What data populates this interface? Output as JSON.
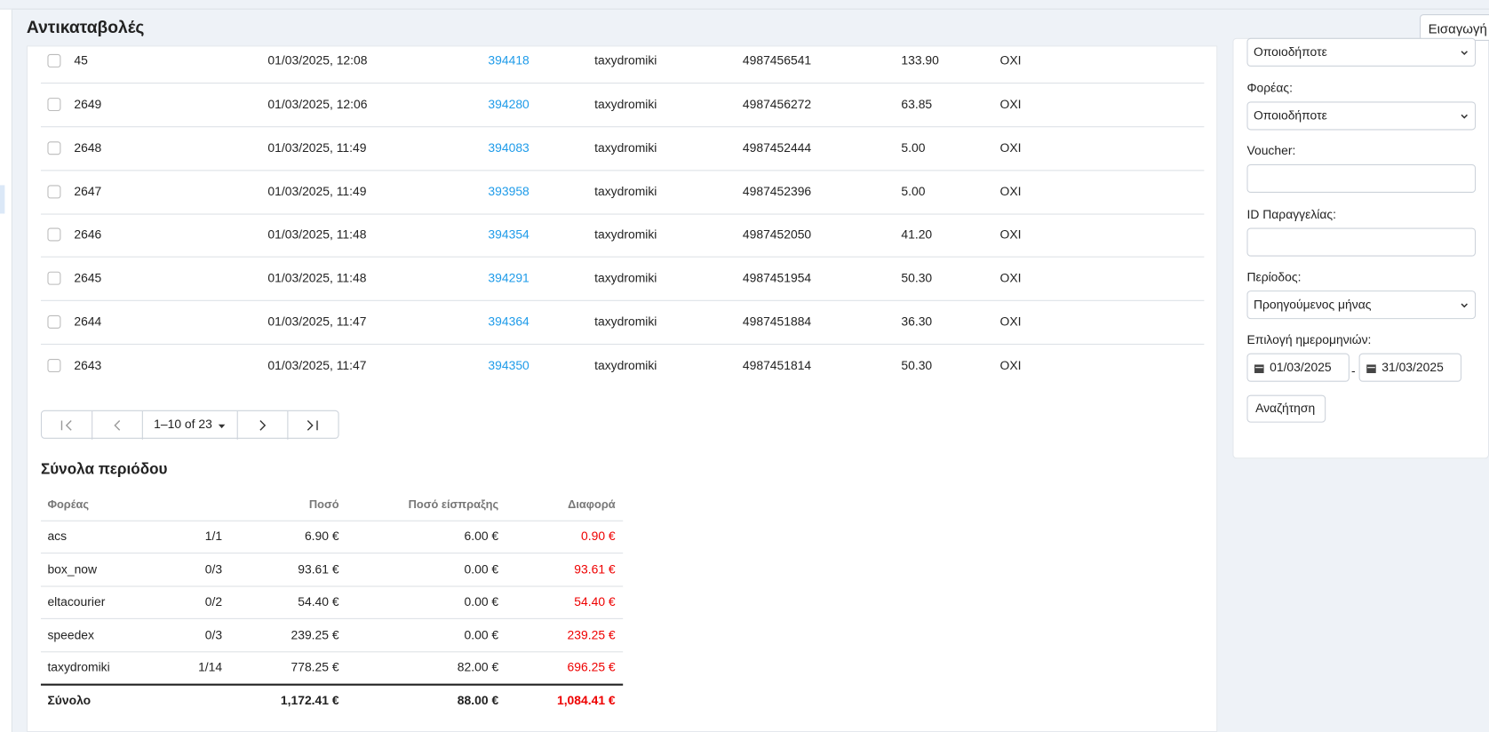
{
  "header": {
    "title": "Αντικαταβολές",
    "import_button": "Εισαγωγή"
  },
  "orders": {
    "rows": [
      [
        "45",
        "01/03/2025, 12:08",
        "394418",
        "taxydromiki",
        "4987456541",
        "133.90",
        "OXI"
      ],
      [
        "2649",
        "01/03/2025, 12:06",
        "394280",
        "taxydromiki",
        "4987456272",
        "63.85",
        "OXI"
      ],
      [
        "2648",
        "01/03/2025, 11:49",
        "394083",
        "taxydromiki",
        "4987452444",
        "5.00",
        "OXI"
      ],
      [
        "2647",
        "01/03/2025, 11:49",
        "393958",
        "taxydromiki",
        "4987452396",
        "5.00",
        "OXI"
      ],
      [
        "2646",
        "01/03/2025, 11:48",
        "394354",
        "taxydromiki",
        "4987452050",
        "41.20",
        "OXI"
      ],
      [
        "2645",
        "01/03/2025, 11:48",
        "394291",
        "taxydromiki",
        "4987451954",
        "50.30",
        "OXI"
      ],
      [
        "2644",
        "01/03/2025, 11:47",
        "394364",
        "taxydromiki",
        "4987451884",
        "36.30",
        "OXI"
      ],
      [
        "2643",
        "01/03/2025, 11:47",
        "394350",
        "taxydromiki",
        "4987451814",
        "50.30",
        "OXI"
      ]
    ]
  },
  "pagination": {
    "range": "1–10 of 23"
  },
  "totals": {
    "title": "Σύνολα περιόδου",
    "headers": [
      "Φορέας",
      "Ποσό",
      "Ποσό είσπραξης",
      "Διαφορά"
    ],
    "rows": [
      [
        "acs",
        "1/1",
        "6.90 €",
        "6.00 €",
        "0.90 €"
      ],
      [
        "box_now",
        "0/3",
        "93.61 €",
        "0.00 €",
        "93.61 €"
      ],
      [
        "eltacourier",
        "0/2",
        "54.40 €",
        "0.00 €",
        "54.40 €"
      ],
      [
        "speedex",
        "0/3",
        "239.25 €",
        "0.00 €",
        "239.25 €"
      ],
      [
        "taxydromiki",
        "1/14",
        "778.25 €",
        "82.00 €",
        "696.25 €"
      ]
    ],
    "footer": [
      "Σύνολο",
      "1,172.41 €",
      "88.00 €",
      "1,084.41 €"
    ]
  },
  "filters": {
    "status_value": "Οποιοδήποτε",
    "carrier_label": "Φορέας:",
    "carrier_value": "Οποιοδήποτε",
    "voucher_label": "Voucher:",
    "order_id_label": "ID Παραγγελίας:",
    "period_label": "Περίοδος:",
    "period_value": "Προηγούμενος μήνας",
    "dates_label": "Επιλογή ημερομηνιών:",
    "date_from": "01/03/2025",
    "date_separator": "-",
    "date_to": "31/03/2025",
    "search_button": "Αναζήτηση"
  }
}
